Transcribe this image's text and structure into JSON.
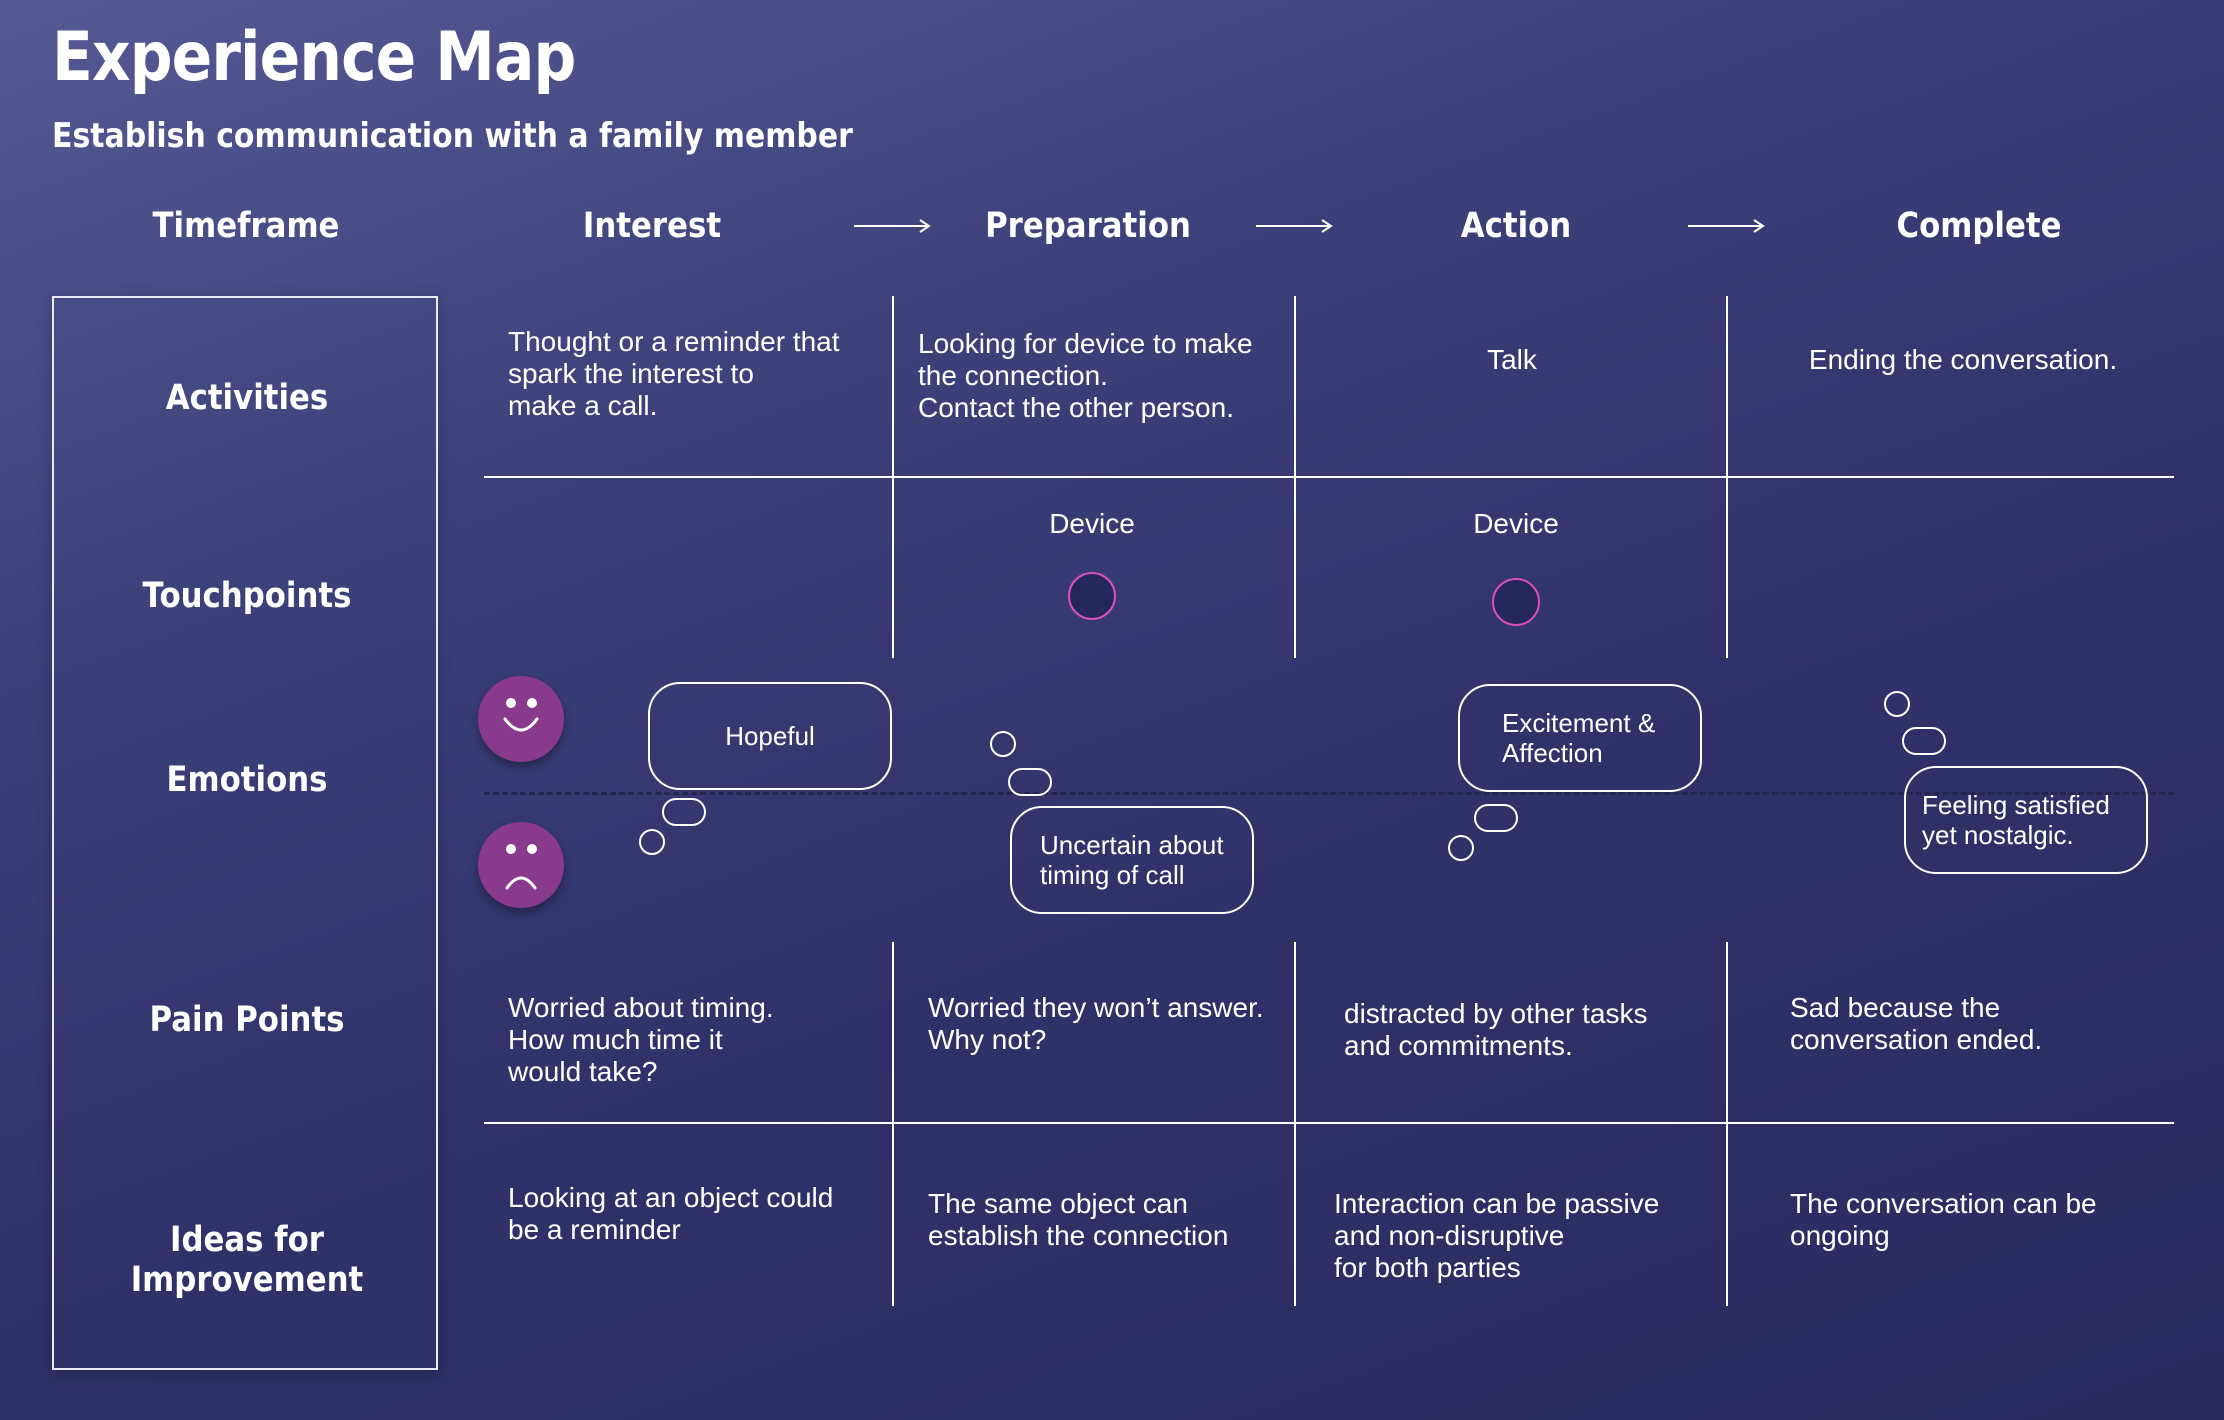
{
  "title": "Experience Map",
  "subtitle": "Establish communication with a family member",
  "header": {
    "timeframe": "Timeframe",
    "stages": [
      "Interest",
      "Preparation",
      "Action",
      "Complete"
    ]
  },
  "rows": {
    "activities": "Activities",
    "touchpoints": "Touchpoints",
    "emotions": "Emotions",
    "pain_points": "Pain Points",
    "ideas": "Ideas for Improvement"
  },
  "activities": [
    "Thought or a reminder that\nspark the interest to\nmake a call.",
    "Looking for device to make\nthe connection.\nContact the other person.",
    "Talk",
    "Ending the conversation."
  ],
  "touchpoints": [
    "Device",
    "Device"
  ],
  "emotions": {
    "interest": "Hopeful",
    "preparation": "Uncertain about\ntiming of call",
    "action": "Excitement &\nAffection",
    "complete": "Feeling satisfied\nyet nostalgic."
  },
  "pain_points": [
    "Worried about timing.\nHow much time it\nwould take?",
    "Worried they won’t answer.\nWhy not?",
    "distracted by other tasks\nand commitments.",
    "Sad because the\nconversation ended."
  ],
  "ideas": [
    "Looking at an object could\nbe a reminder",
    "The same object can\nestablish the connection",
    "Interaction can be passive\nand non-disruptive\nfor both parties",
    "The conversation can be\nongoing"
  ],
  "colors": {
    "background_top": "#555a94",
    "background_bottom": "#2a2c60",
    "face": "#8a3a8d",
    "touchpoint_ring": "#d84fb5",
    "touchpoint_fill": "#24275a"
  },
  "icons": [
    "smiley-face-icon",
    "sad-face-icon",
    "arrow-right-icon"
  ]
}
